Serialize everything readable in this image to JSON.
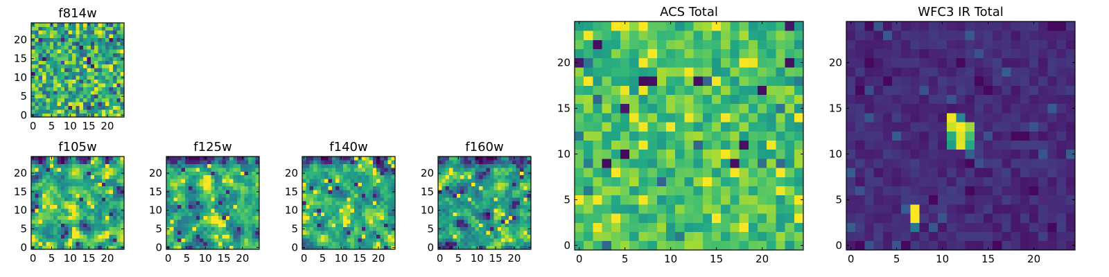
{
  "figure": {
    "description_free": true
  },
  "chart_data": [
    {
      "type": "heatmap",
      "title": "f814w",
      "grid": [
        25,
        25
      ],
      "xlim": [
        0,
        24
      ],
      "ylim": [
        0,
        24
      ],
      "xticks": [
        "0",
        "5",
        "10",
        "15",
        "20"
      ],
      "yticks": [
        "0",
        "5",
        "10",
        "15",
        "20"
      ],
      "colormap": "viridis",
      "pattern": "noise",
      "seed": 11
    },
    {
      "type": "heatmap",
      "title": "f105w",
      "grid": [
        25,
        25
      ],
      "xlim": [
        0,
        24
      ],
      "ylim": [
        0,
        24
      ],
      "xticks": [
        "0",
        "5",
        "10",
        "15",
        "20"
      ],
      "yticks": [
        "0",
        "5",
        "10",
        "15",
        "20"
      ],
      "colormap": "viridis",
      "pattern": "smooth",
      "seed": 23
    },
    {
      "type": "heatmap",
      "title": "f125w",
      "grid": [
        25,
        25
      ],
      "xlim": [
        0,
        24
      ],
      "ylim": [
        0,
        24
      ],
      "xticks": [
        "0",
        "5",
        "10",
        "15",
        "20"
      ],
      "yticks": [
        "0",
        "5",
        "10",
        "15",
        "20"
      ],
      "colormap": "viridis",
      "pattern": "smooth",
      "seed": 37
    },
    {
      "type": "heatmap",
      "title": "f140w",
      "grid": [
        25,
        25
      ],
      "xlim": [
        0,
        24
      ],
      "ylim": [
        0,
        24
      ],
      "xticks": [
        "0",
        "5",
        "10",
        "15",
        "20"
      ],
      "yticks": [
        "0",
        "5",
        "10",
        "15",
        "20"
      ],
      "colormap": "viridis",
      "pattern": "smooth",
      "seed": 41
    },
    {
      "type": "heatmap",
      "title": "f160w",
      "grid": [
        25,
        25
      ],
      "xlim": [
        0,
        24
      ],
      "ylim": [
        0,
        24
      ],
      "xticks": [
        "0",
        "5",
        "10",
        "15",
        "20"
      ],
      "yticks": [
        "0",
        "5",
        "10",
        "15",
        "20"
      ],
      "colormap": "viridis",
      "pattern": "smooth",
      "seed": 53
    },
    {
      "type": "heatmap",
      "title": "ACS Total",
      "grid": [
        25,
        25
      ],
      "xlim": [
        0,
        24
      ],
      "ylim": [
        0,
        24
      ],
      "xticks": [
        "0",
        "5",
        "10",
        "15",
        "20"
      ],
      "yticks": [
        "0",
        "5",
        "10",
        "15",
        "20"
      ],
      "colormap": "viridis",
      "pattern": "bright",
      "seed": 67
    },
    {
      "type": "heatmap",
      "title": "WFC3 IR Total",
      "grid": [
        25,
        25
      ],
      "xlim": [
        0,
        24
      ],
      "ylim": [
        0,
        24
      ],
      "xticks": [
        "0",
        "5",
        "10",
        "15",
        "20"
      ],
      "yticks": [
        "0",
        "5",
        "10",
        "15",
        "20"
      ],
      "colormap": "viridis",
      "pattern": "dark",
      "seed": 79,
      "sources": [
        {
          "x": 11,
          "y": 14,
          "value": 0.98
        },
        {
          "x": 12,
          "y": 13,
          "value": 1.0
        },
        {
          "x": 13,
          "y": 13,
          "value": 0.85
        },
        {
          "x": 11,
          "y": 13,
          "value": 0.92
        },
        {
          "x": 11,
          "y": 12,
          "value": 0.62
        },
        {
          "x": 12,
          "y": 12,
          "value": 0.95
        },
        {
          "x": 13,
          "y": 12,
          "value": 0.7
        },
        {
          "x": 12,
          "y": 11,
          "value": 0.96
        },
        {
          "x": 11,
          "y": 11,
          "value": 0.55
        },
        {
          "x": 13,
          "y": 11,
          "value": 0.6
        },
        {
          "x": 12,
          "y": 14,
          "value": 0.45
        },
        {
          "x": 7,
          "y": 4,
          "value": 1.0
        },
        {
          "x": 7,
          "y": 3,
          "value": 1.0
        },
        {
          "x": 7,
          "y": 2,
          "value": 0.4
        }
      ]
    }
  ]
}
